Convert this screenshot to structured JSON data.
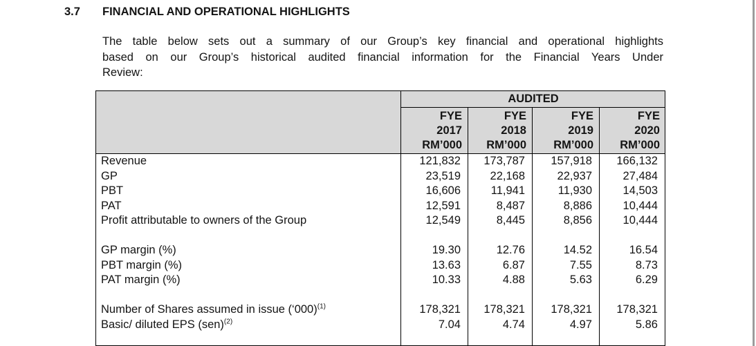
{
  "page": {
    "section_number": "3.7",
    "heading": "FINANCIAL AND OPERATIONAL HIGHLIGHTS",
    "intro_lines": [
      "The table below sets out a summary of our Group’s key financial and operational highlights",
      "based on our Group’s historical audited financial information for the Financial Years Under",
      "Review:"
    ]
  },
  "table": {
    "audited_label": "AUDITED",
    "columns": [
      {
        "fye": "FYE",
        "year": "2017",
        "unit": "RM’000"
      },
      {
        "fye": "FYE",
        "year": "2018",
        "unit": "RM’000"
      },
      {
        "fye": "FYE",
        "year": "2019",
        "unit": "RM’000"
      },
      {
        "fye": "FYE",
        "year": "2020",
        "unit": "RM’000"
      }
    ],
    "rows": [
      {
        "label": "Revenue",
        "values": [
          "121,832",
          "173,787",
          "157,918",
          "166,132"
        ]
      },
      {
        "label": "GP",
        "values": [
          "23,519",
          "22,168",
          "22,937",
          "27,484"
        ]
      },
      {
        "label": "PBT",
        "values": [
          "16,606",
          "11,941",
          "11,930",
          "14,503"
        ]
      },
      {
        "label": "PAT",
        "values": [
          "12,591",
          "8,487",
          "8,886",
          "10,444"
        ]
      },
      {
        "label": "Profit attributable to owners of the Group",
        "values": [
          "12,549",
          "8,445",
          "8,856",
          "10,444"
        ]
      },
      {
        "label": "",
        "values": [
          "",
          "",
          "",
          ""
        ]
      },
      {
        "label": "GP margin (%)",
        "values": [
          "19.30",
          "12.76",
          "14.52",
          "16.54"
        ]
      },
      {
        "label": "PBT margin (%)",
        "values": [
          "13.63",
          "6.87",
          "7.55",
          "8.73"
        ]
      },
      {
        "label": "PAT margin (%)",
        "values": [
          "10.33",
          "4.88",
          "5.63",
          "6.29"
        ]
      },
      {
        "label": "",
        "values": [
          "",
          "",
          "",
          ""
        ]
      },
      {
        "label": "Number of Shares assumed in issue (‘000)",
        "sup": "(1)",
        "values": [
          "178,321",
          "178,321",
          "178,321",
          "178,321"
        ]
      },
      {
        "label": "Basic/ diluted EPS (sen)",
        "sup": "(2)",
        "values": [
          "7.04",
          "4.74",
          "4.97",
          "5.86"
        ]
      }
    ]
  }
}
